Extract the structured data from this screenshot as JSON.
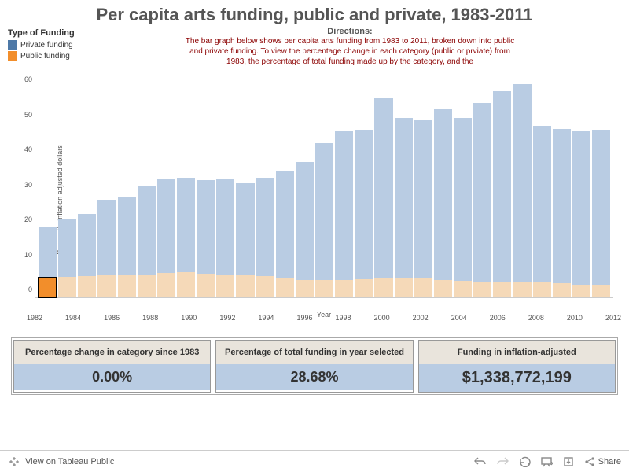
{
  "title": "Per capita arts funding, public and private, 1983-2011",
  "legend": {
    "title": "Type of Funding",
    "items": [
      {
        "label": "Private funding",
        "color": "#4e79a7"
      },
      {
        "label": "Public funding",
        "color": "#f28e2b"
      }
    ]
  },
  "directions": {
    "title": "Directions:",
    "text": "The bar graph below shows per capita arts funding from 1983 to 2011, broken down into public and private funding. To view the percentage change in each category (public or prviate) from 1983, the percentage of total funding made up by the category, and the"
  },
  "chart": {
    "type": "stacked-bar",
    "y_label": "Per capita inflation adjusted dollars",
    "x_label": "Year",
    "y_ticks": [
      0,
      10,
      20,
      30,
      40,
      50,
      60
    ],
    "y_max": 65,
    "x_ticks": [
      1982,
      1984,
      1986,
      1988,
      1990,
      1992,
      1994,
      1996,
      1998,
      2000,
      2002,
      2004,
      2006,
      2008,
      2010,
      2012
    ],
    "x_min": 1982,
    "x_max": 2012,
    "colors": {
      "private": "#b9cce3",
      "public": "#f5d9b8"
    },
    "highlight": {
      "year": 1983,
      "segment": "public",
      "stroke": "#000000",
      "fill": "#f28e2b"
    },
    "data": [
      {
        "year": 1983,
        "private": 14.3,
        "public": 5.7
      },
      {
        "year": 1984,
        "private": 16.5,
        "public": 5.8
      },
      {
        "year": 1985,
        "private": 17.8,
        "public": 6.0
      },
      {
        "year": 1986,
        "private": 21.8,
        "public": 6.2
      },
      {
        "year": 1987,
        "private": 22.5,
        "public": 6.3
      },
      {
        "year": 1988,
        "private": 25.4,
        "public": 6.6
      },
      {
        "year": 1989,
        "private": 27.0,
        "public": 7.0
      },
      {
        "year": 1990,
        "private": 27.0,
        "public": 7.2
      },
      {
        "year": 1991,
        "private": 26.8,
        "public": 6.8
      },
      {
        "year": 1992,
        "private": 27.4,
        "public": 6.5
      },
      {
        "year": 1993,
        "private": 26.7,
        "public": 6.2
      },
      {
        "year": 1994,
        "private": 28.3,
        "public": 6.0
      },
      {
        "year": 1995,
        "private": 30.5,
        "public": 5.7
      },
      {
        "year": 1996,
        "private": 33.8,
        "public": 5.0
      },
      {
        "year": 1997,
        "private": 39.0,
        "public": 5.0
      },
      {
        "year": 1998,
        "private": 42.5,
        "public": 5.0
      },
      {
        "year": 1999,
        "private": 42.8,
        "public": 5.2
      },
      {
        "year": 2000,
        "private": 51.5,
        "public": 5.5
      },
      {
        "year": 2001,
        "private": 45.8,
        "public": 5.5
      },
      {
        "year": 2002,
        "private": 45.5,
        "public": 5.3
      },
      {
        "year": 2003,
        "private": 48.8,
        "public": 5.0
      },
      {
        "year": 2004,
        "private": 46.5,
        "public": 4.7
      },
      {
        "year": 2005,
        "private": 51.0,
        "public": 4.5
      },
      {
        "year": 2006,
        "private": 54.4,
        "public": 4.5
      },
      {
        "year": 2007,
        "private": 56.4,
        "public": 4.5
      },
      {
        "year": 2008,
        "private": 44.8,
        "public": 4.2
      },
      {
        "year": 2009,
        "private": 44.2,
        "public": 4.0
      },
      {
        "year": 2010,
        "private": 43.8,
        "public": 3.7
      },
      {
        "year": 2011,
        "private": 44.5,
        "public": 3.5
      }
    ]
  },
  "stats": [
    {
      "head": "Percentage change in category since 1983",
      "value": "0.00%"
    },
    {
      "head": "Percentage of total funding in year selected",
      "value": "28.68%"
    },
    {
      "head": "Funding in inflation-adjusted",
      "value": "$1,338,772,199",
      "big": true
    }
  ],
  "toolbar": {
    "view_text": "View on Tableau Public",
    "share": "Share"
  }
}
